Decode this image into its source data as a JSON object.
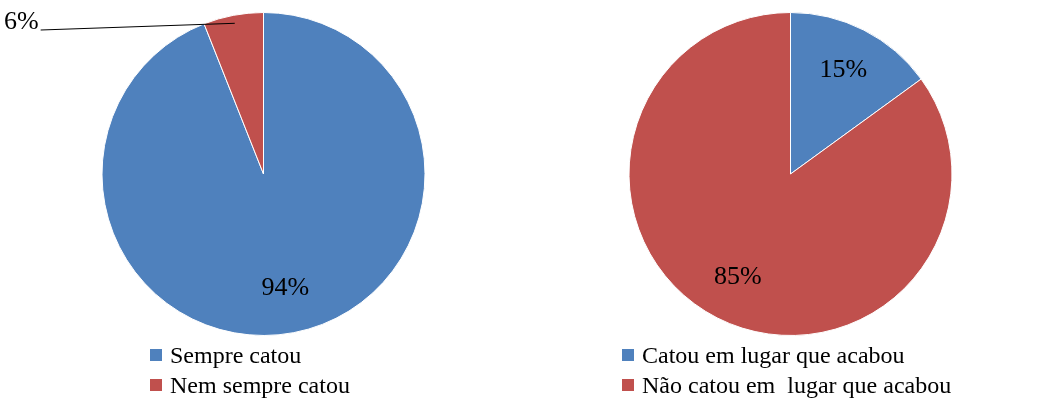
{
  "chart_data": [
    {
      "type": "pie",
      "categories": [
        "Sempre catou",
        "Nem sempre catou"
      ],
      "values": [
        94,
        6
      ],
      "value_labels": [
        "94%",
        "6%"
      ],
      "colors": [
        "#4f81bd",
        "#c0504d"
      ],
      "legend": "bottom"
    },
    {
      "type": "pie",
      "categories": [
        "Catou em lugar que acabou",
        "Não catou em  lugar que acabou"
      ],
      "values": [
        15,
        85
      ],
      "value_labels": [
        "15%",
        "85%"
      ],
      "colors": [
        "#4f81bd",
        "#c0504d"
      ],
      "legend": "bottom"
    }
  ]
}
